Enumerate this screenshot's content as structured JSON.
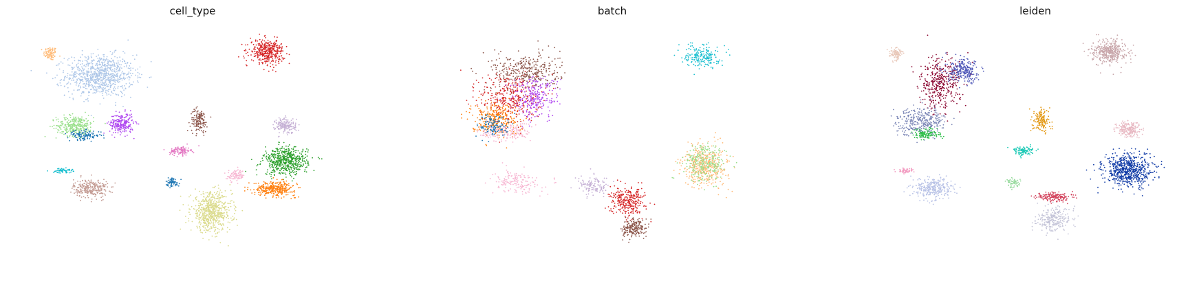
{
  "figure_type": "UMAP embedding scatter plots (scanpy style, axes hidden)",
  "chart_data": [
    {
      "type": "scatter",
      "title": "cell_type",
      "xlabel": "",
      "ylabel": "",
      "axes_visible": false,
      "grid": false,
      "legend": "none",
      "series": [
        {
          "color": "#ffbb78",
          "cx": -1.28,
          "cy": 1.47,
          "rx": 0.04,
          "ry": 0.06,
          "n": 90
        },
        {
          "color": "#aec7e8",
          "cx": -0.96,
          "cy": 1.26,
          "rx": 0.2,
          "ry": 0.18,
          "n": 900
        },
        {
          "color": "#98df8a",
          "cx": -1.12,
          "cy": 0.78,
          "rx": 0.11,
          "ry": 0.09,
          "n": 300
        },
        {
          "color": "#1f77b4",
          "cx": -1.06,
          "cy": 0.69,
          "rx": 0.1,
          "ry": 0.04,
          "n": 120
        },
        {
          "color": "#b049f0",
          "cx": -0.82,
          "cy": 0.8,
          "rx": 0.07,
          "ry": 0.09,
          "n": 250
        },
        {
          "color": "#17becf",
          "cx": -1.2,
          "cy": 0.35,
          "rx": 0.06,
          "ry": 0.02,
          "n": 60
        },
        {
          "color": "#c49c94",
          "cx": -1.02,
          "cy": 0.18,
          "rx": 0.1,
          "ry": 0.08,
          "n": 280
        },
        {
          "color": "#1f77b4",
          "cx": -0.49,
          "cy": 0.24,
          "rx": 0.04,
          "ry": 0.04,
          "n": 70
        },
        {
          "color": "#8c564b",
          "cx": -0.32,
          "cy": 0.83,
          "rx": 0.05,
          "ry": 0.1,
          "n": 150
        },
        {
          "color": "#e377c2",
          "cx": -0.44,
          "cy": 0.54,
          "rx": 0.06,
          "ry": 0.04,
          "n": 110
        },
        {
          "color": "#dbdb8d",
          "cx": -0.24,
          "cy": -0.05,
          "rx": 0.12,
          "ry": 0.17,
          "n": 650
        },
        {
          "color": "#f7b6d2",
          "cx": -0.08,
          "cy": 0.3,
          "rx": 0.05,
          "ry": 0.05,
          "n": 90
        },
        {
          "color": "#d62728",
          "cx": 0.12,
          "cy": 1.49,
          "rx": 0.1,
          "ry": 0.1,
          "n": 400
        },
        {
          "color": "#c5b0d5",
          "cx": 0.24,
          "cy": 0.78,
          "rx": 0.06,
          "ry": 0.07,
          "n": 180
        },
        {
          "color": "#2ca02c",
          "cx": 0.24,
          "cy": 0.44,
          "rx": 0.13,
          "ry": 0.12,
          "n": 550
        },
        {
          "color": "#ff7f0e",
          "cx": 0.17,
          "cy": 0.18,
          "rx": 0.12,
          "ry": 0.06,
          "n": 320
        }
      ]
    },
    {
      "type": "scatter",
      "title": "batch",
      "xlabel": "",
      "ylabel": "",
      "axes_visible": false,
      "grid": false,
      "legend": "none",
      "series": [
        {
          "color": "#8c564b",
          "cx": -0.92,
          "cy": 1.3,
          "rx": 0.2,
          "ry": 0.16,
          "n": 350
        },
        {
          "color": "#d62728",
          "cx": -1.02,
          "cy": 1.05,
          "rx": 0.18,
          "ry": 0.22,
          "n": 350
        },
        {
          "color": "#ff7f0e",
          "cx": -1.12,
          "cy": 0.85,
          "rx": 0.14,
          "ry": 0.15,
          "n": 300
        },
        {
          "color": "#b049f0",
          "cx": -0.86,
          "cy": 1.05,
          "rx": 0.14,
          "ry": 0.18,
          "n": 250
        },
        {
          "color": "#f7b6d2",
          "cx": -1.05,
          "cy": 0.72,
          "rx": 0.15,
          "ry": 0.08,
          "n": 180
        },
        {
          "color": "#1f77b4",
          "cx": -1.12,
          "cy": 0.78,
          "rx": 0.1,
          "ry": 0.1,
          "n": 120
        },
        {
          "color": "#c5b0d5",
          "cx": -0.48,
          "cy": 0.2,
          "rx": 0.09,
          "ry": 0.08,
          "n": 120
        },
        {
          "color": "#f7b6d2",
          "cx": -0.98,
          "cy": 0.24,
          "rx": 0.14,
          "ry": 0.1,
          "n": 160
        },
        {
          "color": "#d62728",
          "cx": -0.26,
          "cy": 0.05,
          "rx": 0.1,
          "ry": 0.12,
          "n": 300
        },
        {
          "color": "#8c564b",
          "cx": -0.22,
          "cy": -0.2,
          "rx": 0.07,
          "ry": 0.08,
          "n": 200
        },
        {
          "color": "#17becf",
          "cx": 0.22,
          "cy": 1.45,
          "rx": 0.1,
          "ry": 0.1,
          "n": 200
        },
        {
          "color": "#ffbb78",
          "cx": 0.24,
          "cy": 0.4,
          "rx": 0.13,
          "ry": 0.18,
          "n": 450
        },
        {
          "color": "#98df8a",
          "cx": 0.24,
          "cy": 0.42,
          "rx": 0.12,
          "ry": 0.16,
          "n": 250
        }
      ]
    },
    {
      "type": "scatter",
      "title": "leiden",
      "xlabel": "",
      "ylabel": "",
      "axes_visible": false,
      "grid": false,
      "legend": "none",
      "series": [
        {
          "color": "#e8c7b8",
          "cx": -1.26,
          "cy": 1.47,
          "rx": 0.04,
          "ry": 0.06,
          "n": 90
        },
        {
          "color": "#8c0a33",
          "cx": -0.98,
          "cy": 1.18,
          "rx": 0.12,
          "ry": 0.22,
          "n": 400
        },
        {
          "color": "#4f58b8",
          "cx": -0.82,
          "cy": 1.3,
          "rx": 0.1,
          "ry": 0.1,
          "n": 250
        },
        {
          "color": "#7b86b6",
          "cx": -1.1,
          "cy": 0.82,
          "rx": 0.14,
          "ry": 0.12,
          "n": 350
        },
        {
          "color": "#2fbf4a",
          "cx": -1.06,
          "cy": 0.7,
          "rx": 0.08,
          "ry": 0.05,
          "n": 120
        },
        {
          "color": "#f29ac0",
          "cx": -1.2,
          "cy": 0.35,
          "rx": 0.06,
          "ry": 0.02,
          "n": 60
        },
        {
          "color": "#b8c2e6",
          "cx": -1.02,
          "cy": 0.18,
          "rx": 0.11,
          "ry": 0.09,
          "n": 300
        },
        {
          "color": "#e39710",
          "cx": -0.32,
          "cy": 0.83,
          "rx": 0.05,
          "ry": 0.1,
          "n": 150
        },
        {
          "color": "#1bc9b5",
          "cx": -0.44,
          "cy": 0.54,
          "rx": 0.06,
          "ry": 0.04,
          "n": 110
        },
        {
          "color": "#93d99a",
          "cx": -0.5,
          "cy": 0.23,
          "rx": 0.04,
          "ry": 0.04,
          "n": 60
        },
        {
          "color": "#c8a6aa",
          "cx": 0.12,
          "cy": 1.49,
          "rx": 0.1,
          "ry": 0.1,
          "n": 400
        },
        {
          "color": "#d3455e",
          "cx": -0.24,
          "cy": 0.1,
          "rx": 0.1,
          "ry": 0.04,
          "n": 180
        },
        {
          "color": "#c4c4d8",
          "cx": -0.24,
          "cy": -0.12,
          "rx": 0.1,
          "ry": 0.1,
          "n": 250
        },
        {
          "color": "#e8b8c2",
          "cx": 0.24,
          "cy": 0.75,
          "rx": 0.07,
          "ry": 0.07,
          "n": 200
        },
        {
          "color": "#0f3aa6",
          "cx": 0.24,
          "cy": 0.35,
          "rx": 0.14,
          "ry": 0.14,
          "n": 650
        }
      ]
    }
  ]
}
